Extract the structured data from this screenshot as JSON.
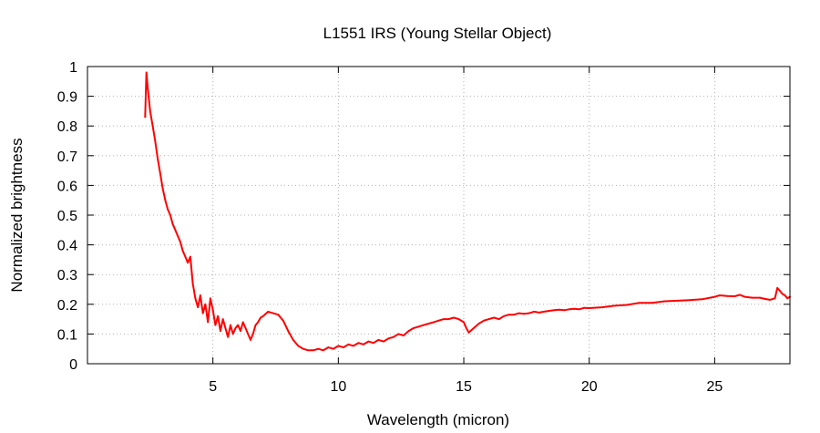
{
  "chart_data": {
    "type": "line",
    "title": "L1551 IRS (Young Stellar Object)",
    "xlabel": "Wavelength (micron)",
    "ylabel": "Normalized brightness",
    "xlim": [
      0,
      28
    ],
    "ylim": [
      0,
      1
    ],
    "x_ticks": [
      5,
      10,
      15,
      20,
      25
    ],
    "y_ticks": [
      0,
      0.1,
      0.2,
      0.3,
      0.4,
      0.5,
      0.6,
      0.7,
      0.8,
      0.9,
      1
    ],
    "x_tick_labels": [
      "5",
      "10",
      "15",
      "20",
      "25"
    ],
    "y_tick_labels": [
      "0",
      "0.1",
      "0.2",
      "0.3",
      "0.4",
      "0.5",
      "0.6",
      "0.7",
      "0.8",
      "0.9",
      "1"
    ],
    "grid": true,
    "series": [
      {
        "color": "#ff0000",
        "x": [
          2.3,
          2.35,
          2.4,
          2.5,
          2.6,
          2.7,
          2.8,
          2.9,
          3.0,
          3.1,
          3.2,
          3.3,
          3.4,
          3.5,
          3.6,
          3.7,
          3.8,
          3.9,
          4.0,
          4.1,
          4.2,
          4.3,
          4.4,
          4.5,
          4.6,
          4.7,
          4.8,
          4.9,
          5.0,
          5.1,
          5.2,
          5.3,
          5.4,
          5.5,
          5.6,
          5.7,
          5.8,
          5.9,
          6.0,
          6.1,
          6.2,
          6.3,
          6.4,
          6.5,
          6.6,
          6.7,
          6.8,
          6.9,
          7.0,
          7.2,
          7.4,
          7.6,
          7.8,
          8.0,
          8.2,
          8.4,
          8.6,
          8.8,
          9.0,
          9.2,
          9.4,
          9.6,
          9.8,
          10.0,
          10.2,
          10.4,
          10.6,
          10.8,
          11.0,
          11.2,
          11.4,
          11.6,
          11.8,
          12.0,
          12.2,
          12.4,
          12.6,
          12.8,
          13.0,
          13.2,
          13.4,
          13.6,
          13.8,
          14.0,
          14.2,
          14.4,
          14.6,
          14.8,
          15.0,
          15.1,
          15.2,
          15.4,
          15.6,
          15.8,
          16.0,
          16.2,
          16.4,
          16.6,
          16.8,
          17.0,
          17.2,
          17.4,
          17.6,
          17.8,
          18.0,
          18.2,
          18.4,
          18.6,
          18.8,
          19.0,
          19.2,
          19.4,
          19.6,
          19.8,
          20.0,
          20.5,
          21.0,
          21.5,
          22.0,
          22.5,
          23.0,
          23.5,
          24.0,
          24.5,
          25.0,
          25.2,
          25.5,
          25.8,
          26.0,
          26.2,
          26.5,
          26.8,
          27.0,
          27.2,
          27.4,
          27.5,
          27.6,
          27.7,
          27.8,
          27.9,
          28.0
        ],
        "y": [
          0.83,
          0.98,
          0.93,
          0.85,
          0.8,
          0.75,
          0.69,
          0.64,
          0.59,
          0.55,
          0.52,
          0.5,
          0.47,
          0.45,
          0.43,
          0.41,
          0.38,
          0.36,
          0.34,
          0.36,
          0.27,
          0.22,
          0.19,
          0.23,
          0.17,
          0.2,
          0.14,
          0.22,
          0.18,
          0.13,
          0.16,
          0.11,
          0.15,
          0.12,
          0.09,
          0.13,
          0.1,
          0.12,
          0.13,
          0.11,
          0.14,
          0.12,
          0.1,
          0.08,
          0.1,
          0.13,
          0.14,
          0.155,
          0.16,
          0.175,
          0.17,
          0.165,
          0.145,
          0.11,
          0.08,
          0.06,
          0.05,
          0.045,
          0.045,
          0.05,
          0.045,
          0.055,
          0.05,
          0.06,
          0.055,
          0.065,
          0.06,
          0.07,
          0.065,
          0.075,
          0.07,
          0.08,
          0.075,
          0.085,
          0.09,
          0.1,
          0.095,
          0.11,
          0.12,
          0.125,
          0.13,
          0.135,
          0.14,
          0.145,
          0.15,
          0.15,
          0.155,
          0.15,
          0.14,
          0.12,
          0.105,
          0.12,
          0.135,
          0.145,
          0.15,
          0.155,
          0.15,
          0.16,
          0.165,
          0.165,
          0.17,
          0.168,
          0.17,
          0.175,
          0.172,
          0.175,
          0.178,
          0.18,
          0.182,
          0.18,
          0.183,
          0.185,
          0.183,
          0.188,
          0.187,
          0.19,
          0.195,
          0.198,
          0.205,
          0.205,
          0.21,
          0.212,
          0.214,
          0.217,
          0.225,
          0.23,
          0.228,
          0.227,
          0.232,
          0.225,
          0.222,
          0.222,
          0.218,
          0.215,
          0.22,
          0.255,
          0.245,
          0.235,
          0.23,
          0.22,
          0.225
        ]
      }
    ]
  }
}
